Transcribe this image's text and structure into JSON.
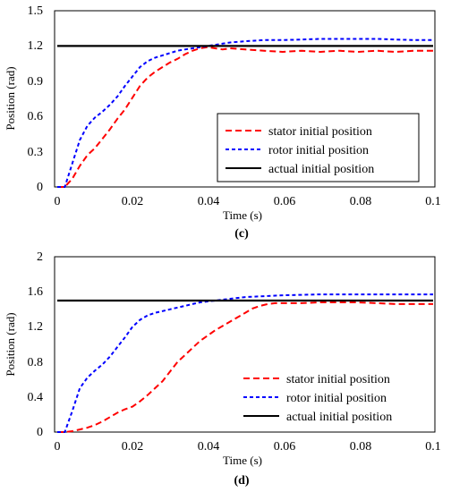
{
  "chart_data": [
    {
      "type": "line",
      "caption": "(c)",
      "xlabel": "Time (s)",
      "ylabel": "Position (rad)",
      "xlim": [
        0,
        0.1
      ],
      "ylim": [
        0,
        1.5
      ],
      "xticks": [
        "0",
        "0.02",
        "0.04",
        "0.06",
        "0.08",
        "0.1"
      ],
      "yticks": [
        "0",
        "0.3",
        "0.6",
        "0.9",
        "1.2",
        "1.5"
      ],
      "grid": false,
      "legend_position": "bottom-right",
      "series": [
        {
          "name": "stator initial position",
          "color": "#ff0000",
          "style": "dashed",
          "x": [
            0,
            0.002,
            0.004,
            0.006,
            0.008,
            0.01,
            0.012,
            0.014,
            0.016,
            0.018,
            0.02,
            0.022,
            0.024,
            0.026,
            0.028,
            0.03,
            0.032,
            0.034,
            0.036,
            0.038,
            0.04,
            0.042,
            0.044,
            0.046,
            0.05,
            0.055,
            0.06,
            0.065,
            0.07,
            0.075,
            0.08,
            0.085,
            0.09,
            0.095,
            0.1
          ],
          "y": [
            0,
            0.0,
            0.07,
            0.18,
            0.27,
            0.33,
            0.41,
            0.49,
            0.58,
            0.66,
            0.76,
            0.86,
            0.93,
            0.98,
            1.02,
            1.06,
            1.09,
            1.13,
            1.16,
            1.18,
            1.19,
            1.18,
            1.17,
            1.18,
            1.17,
            1.16,
            1.15,
            1.16,
            1.15,
            1.16,
            1.15,
            1.16,
            1.15,
            1.16,
            1.16
          ]
        },
        {
          "name": "rotor initial position",
          "color": "#0000ff",
          "style": "dashed",
          "x": [
            0,
            0.002,
            0.004,
            0.006,
            0.008,
            0.01,
            0.012,
            0.014,
            0.016,
            0.018,
            0.02,
            0.022,
            0.024,
            0.026,
            0.028,
            0.03,
            0.032,
            0.034,
            0.036,
            0.038,
            0.04,
            0.042,
            0.044,
            0.046,
            0.05,
            0.055,
            0.06,
            0.065,
            0.07,
            0.075,
            0.08,
            0.085,
            0.09,
            0.095,
            0.1
          ],
          "y": [
            0,
            0.0,
            0.2,
            0.4,
            0.52,
            0.59,
            0.64,
            0.7,
            0.77,
            0.86,
            0.94,
            1.02,
            1.07,
            1.1,
            1.12,
            1.14,
            1.16,
            1.17,
            1.18,
            1.19,
            1.2,
            1.21,
            1.22,
            1.23,
            1.24,
            1.25,
            1.25,
            1.255,
            1.26,
            1.26,
            1.26,
            1.26,
            1.255,
            1.25,
            1.25
          ]
        },
        {
          "name": "actual initial position",
          "color": "#000000",
          "style": "solid",
          "x": [
            0,
            0.1
          ],
          "y": [
            1.2,
            1.2
          ]
        }
      ]
    },
    {
      "type": "line",
      "caption": "(d)",
      "xlabel": "Time (s)",
      "ylabel": "Position (rad)",
      "xlim": [
        0,
        0.1
      ],
      "ylim": [
        0,
        2
      ],
      "xticks": [
        "0",
        "0.02",
        "0.04",
        "0.06",
        "0.08",
        "0.1"
      ],
      "yticks": [
        "0",
        "0.4",
        "0.8",
        "1.2",
        "1.6",
        "2"
      ],
      "grid": false,
      "legend_position": "bottom-right",
      "series": [
        {
          "name": "stator initial position",
          "color": "#ff0000",
          "style": "dashed",
          "x": [
            0,
            0.002,
            0.004,
            0.006,
            0.008,
            0.01,
            0.012,
            0.014,
            0.016,
            0.018,
            0.02,
            0.022,
            0.024,
            0.026,
            0.028,
            0.03,
            0.032,
            0.034,
            0.036,
            0.038,
            0.04,
            0.042,
            0.044,
            0.046,
            0.048,
            0.05,
            0.052,
            0.054,
            0.056,
            0.058,
            0.06,
            0.065,
            0.07,
            0.075,
            0.08,
            0.085,
            0.09,
            0.095,
            0.1
          ],
          "y": [
            0,
            0.0,
            0.01,
            0.03,
            0.05,
            0.08,
            0.12,
            0.17,
            0.22,
            0.26,
            0.29,
            0.35,
            0.42,
            0.5,
            0.58,
            0.69,
            0.8,
            0.88,
            0.96,
            1.04,
            1.1,
            1.16,
            1.21,
            1.26,
            1.31,
            1.36,
            1.41,
            1.44,
            1.46,
            1.47,
            1.47,
            1.47,
            1.48,
            1.48,
            1.48,
            1.47,
            1.46,
            1.46,
            1.46
          ]
        },
        {
          "name": "rotor initial position",
          "color": "#0000ff",
          "style": "dashed",
          "x": [
            0,
            0.002,
            0.004,
            0.006,
            0.008,
            0.01,
            0.012,
            0.014,
            0.016,
            0.018,
            0.02,
            0.022,
            0.024,
            0.026,
            0.028,
            0.03,
            0.032,
            0.034,
            0.036,
            0.038,
            0.04,
            0.042,
            0.044,
            0.046,
            0.05,
            0.055,
            0.06,
            0.065,
            0.07,
            0.075,
            0.08,
            0.085,
            0.09,
            0.095,
            0.1
          ],
          "y": [
            0,
            0.0,
            0.24,
            0.5,
            0.62,
            0.7,
            0.77,
            0.86,
            0.97,
            1.08,
            1.2,
            1.28,
            1.33,
            1.36,
            1.38,
            1.4,
            1.42,
            1.44,
            1.46,
            1.48,
            1.49,
            1.5,
            1.51,
            1.52,
            1.54,
            1.55,
            1.56,
            1.565,
            1.57,
            1.57,
            1.57,
            1.57,
            1.57,
            1.57,
            1.57
          ]
        },
        {
          "name": "actual initial position",
          "color": "#000000",
          "style": "solid",
          "x": [
            0,
            0.1
          ],
          "y": [
            1.5,
            1.5
          ]
        }
      ]
    }
  ]
}
